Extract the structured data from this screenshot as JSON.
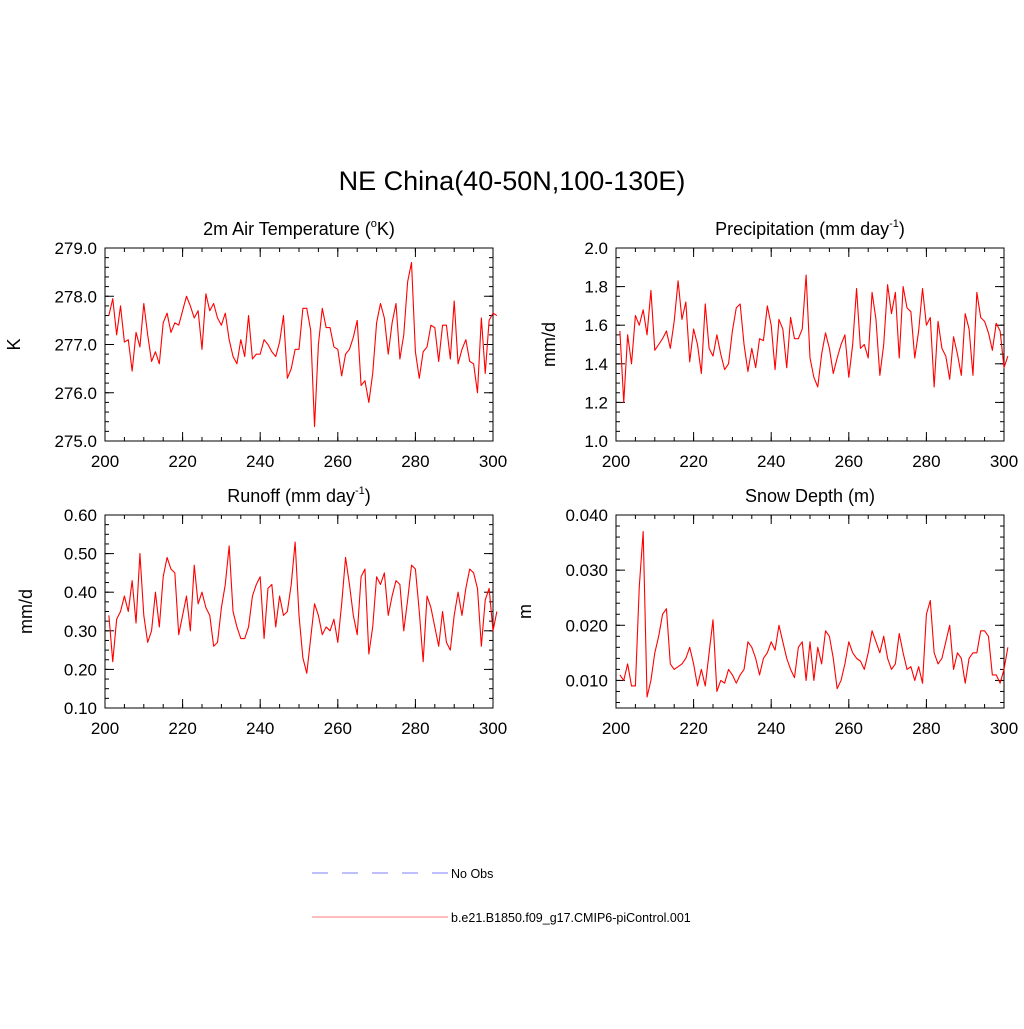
{
  "figure_title": "NE China(40-50N,100-130E)",
  "legend": {
    "entries": [
      {
        "label": "No Obs",
        "color": "#9999ff",
        "style": "dashed"
      },
      {
        "label": "b.e21.B1850.f09_g17.CMIP6-piControl.001",
        "color": "#ff9999",
        "style": "solid"
      }
    ]
  },
  "chart_data": [
    {
      "type": "line",
      "title": "2m Air Temperature (",
      "title_sup": "o",
      "title_tail": "K)",
      "xlabel": "",
      "ylabel": "K",
      "xlim": [
        200,
        300
      ],
      "ylim": [
        275.0,
        279.0
      ],
      "xticks": [
        200,
        220,
        240,
        260,
        280,
        300
      ],
      "xtick_labels": [
        "200",
        "220",
        "240",
        "260",
        "280",
        "300"
      ],
      "yticks": [
        275.0,
        276.0,
        277.0,
        278.0,
        279.0
      ],
      "ytick_labels": [
        "275.0",
        "276.0",
        "277.0",
        "278.0",
        "279.0"
      ],
      "y_minor_step": 0.2,
      "line_color": "#ff0000",
      "series": [
        {
          "name": "b.e21.B1850.f09_g17.CMIP6-piControl.001",
          "x_start": 201,
          "x_step": 1,
          "values": [
            277.6,
            277.95,
            277.2,
            277.8,
            277.05,
            277.1,
            276.45,
            277.25,
            276.95,
            277.85,
            277.2,
            276.65,
            276.85,
            276.6,
            277.45,
            277.65,
            277.25,
            277.45,
            277.4,
            277.7,
            278.0,
            277.8,
            277.55,
            277.7,
            276.9,
            278.05,
            277.7,
            277.85,
            277.55,
            277.4,
            277.65,
            277.1,
            276.75,
            276.6,
            277.1,
            276.75,
            277.6,
            276.7,
            276.8,
            276.8,
            277.1,
            277.0,
            276.85,
            276.75,
            277.05,
            277.6,
            276.3,
            276.5,
            276.9,
            276.9,
            277.75,
            277.75,
            277.3,
            275.3,
            277.0,
            277.75,
            277.35,
            277.35,
            276.95,
            276.9,
            276.35,
            276.8,
            276.9,
            277.15,
            277.5,
            276.15,
            276.25,
            275.8,
            276.4,
            277.45,
            277.85,
            277.55,
            276.8,
            277.45,
            277.85,
            276.7,
            277.2,
            278.3,
            278.7,
            276.85,
            276.3,
            276.85,
            276.95,
            277.4,
            277.35,
            276.65,
            277.4,
            277.4,
            276.7,
            277.9,
            276.6,
            276.9,
            277.1,
            276.65,
            276.6,
            276.0,
            277.55,
            276.4,
            277.5,
            277.65,
            277.6
          ]
        }
      ]
    },
    {
      "type": "line",
      "title": "Precipitation (mm day",
      "title_sup": "-1",
      "title_tail": ")",
      "xlabel": "",
      "ylabel": "mm/d",
      "xlim": [
        200,
        300
      ],
      "ylim": [
        1.0,
        2.0
      ],
      "xticks": [
        200,
        220,
        240,
        260,
        280,
        300
      ],
      "xtick_labels": [
        "200",
        "220",
        "240",
        "260",
        "280",
        "300"
      ],
      "yticks": [
        1.0,
        1.2,
        1.4,
        1.6,
        1.8,
        2.0
      ],
      "ytick_labels": [
        "1.0",
        "1.2",
        "1.4",
        "1.6",
        "1.8",
        "2.0"
      ],
      "y_minor_step": 0.05,
      "line_color": "#ff0000",
      "series": [
        {
          "name": "b.e21.B1850.f09_g17.CMIP6-piControl.001",
          "x_start": 201,
          "x_step": 1,
          "values": [
            1.57,
            1.2,
            1.55,
            1.4,
            1.65,
            1.6,
            1.68,
            1.55,
            1.78,
            1.47,
            1.5,
            1.53,
            1.57,
            1.48,
            1.62,
            1.83,
            1.63,
            1.72,
            1.41,
            1.58,
            1.5,
            1.35,
            1.71,
            1.48,
            1.44,
            1.55,
            1.45,
            1.37,
            1.4,
            1.57,
            1.69,
            1.71,
            1.5,
            1.36,
            1.48,
            1.38,
            1.53,
            1.52,
            1.7,
            1.6,
            1.37,
            1.63,
            1.58,
            1.38,
            1.64,
            1.53,
            1.53,
            1.58,
            1.86,
            1.43,
            1.33,
            1.28,
            1.45,
            1.56,
            1.48,
            1.35,
            1.43,
            1.5,
            1.55,
            1.33,
            1.5,
            1.79,
            1.48,
            1.5,
            1.43,
            1.77,
            1.63,
            1.34,
            1.5,
            1.81,
            1.66,
            1.77,
            1.43,
            1.8,
            1.69,
            1.67,
            1.43,
            1.57,
            1.79,
            1.6,
            1.64,
            1.28,
            1.62,
            1.48,
            1.44,
            1.32,
            1.54,
            1.45,
            1.34,
            1.66,
            1.58,
            1.34,
            1.77,
            1.64,
            1.62,
            1.56,
            1.47,
            1.61,
            1.57,
            1.38,
            1.44
          ]
        }
      ]
    },
    {
      "type": "line",
      "title": "Runoff (mm day",
      "title_sup": "-1",
      "title_tail": ")",
      "xlabel": "",
      "ylabel": "mm/d",
      "xlim": [
        200,
        300
      ],
      "ylim": [
        0.1,
        0.6
      ],
      "xticks": [
        200,
        220,
        240,
        260,
        280,
        300
      ],
      "xtick_labels": [
        "200",
        "220",
        "240",
        "260",
        "280",
        "300"
      ],
      "yticks": [
        0.1,
        0.2,
        0.3,
        0.4,
        0.5,
        0.6
      ],
      "ytick_labels": [
        "0.10",
        "0.20",
        "0.30",
        "0.40",
        "0.50",
        "0.60"
      ],
      "y_minor_step": 0.025,
      "line_color": "#ff0000",
      "series": [
        {
          "name": "b.e21.B1850.f09_g17.CMIP6-piControl.001",
          "x_start": 201,
          "x_step": 1,
          "values": [
            0.34,
            0.22,
            0.33,
            0.35,
            0.39,
            0.35,
            0.43,
            0.32,
            0.5,
            0.34,
            0.27,
            0.3,
            0.4,
            0.31,
            0.44,
            0.49,
            0.46,
            0.45,
            0.29,
            0.34,
            0.39,
            0.3,
            0.47,
            0.37,
            0.4,
            0.36,
            0.34,
            0.26,
            0.27,
            0.36,
            0.42,
            0.52,
            0.35,
            0.31,
            0.28,
            0.28,
            0.31,
            0.39,
            0.42,
            0.44,
            0.28,
            0.41,
            0.42,
            0.31,
            0.39,
            0.34,
            0.35,
            0.42,
            0.53,
            0.34,
            0.23,
            0.19,
            0.28,
            0.37,
            0.34,
            0.29,
            0.31,
            0.3,
            0.33,
            0.27,
            0.37,
            0.49,
            0.42,
            0.34,
            0.29,
            0.44,
            0.46,
            0.24,
            0.31,
            0.44,
            0.42,
            0.45,
            0.34,
            0.39,
            0.43,
            0.42,
            0.3,
            0.38,
            0.47,
            0.46,
            0.35,
            0.22,
            0.39,
            0.36,
            0.31,
            0.26,
            0.35,
            0.27,
            0.25,
            0.34,
            0.4,
            0.34,
            0.41,
            0.46,
            0.45,
            0.41,
            0.26,
            0.38,
            0.41,
            0.3,
            0.35
          ]
        }
      ]
    },
    {
      "type": "line",
      "title": "Snow Depth (m)",
      "title_sup": "",
      "title_tail": "",
      "xlabel": "",
      "ylabel": "m",
      "xlim": [
        200,
        300
      ],
      "ylim": [
        0.005,
        0.04
      ],
      "xticks": [
        200,
        220,
        240,
        260,
        280,
        300
      ],
      "xtick_labels": [
        "200",
        "220",
        "240",
        "260",
        "280",
        "300"
      ],
      "yticks": [
        0.01,
        0.02,
        0.03,
        0.04
      ],
      "ytick_labels": [
        "0.010",
        "0.020",
        "0.030",
        "0.040"
      ],
      "y_minor_step": 0.002,
      "line_color": "#ff0000",
      "series": [
        {
          "name": "b.e21.B1850.f09_g17.CMIP6-piControl.001",
          "x_start": 201,
          "x_step": 1,
          "values": [
            0.011,
            0.01,
            0.013,
            0.009,
            0.009,
            0.027,
            0.037,
            0.007,
            0.01,
            0.015,
            0.018,
            0.022,
            0.023,
            0.013,
            0.012,
            0.0125,
            0.013,
            0.014,
            0.016,
            0.013,
            0.009,
            0.012,
            0.009,
            0.015,
            0.021,
            0.008,
            0.01,
            0.0095,
            0.012,
            0.011,
            0.0095,
            0.011,
            0.012,
            0.017,
            0.016,
            0.014,
            0.011,
            0.014,
            0.015,
            0.017,
            0.0155,
            0.02,
            0.017,
            0.014,
            0.012,
            0.0105,
            0.016,
            0.017,
            0.01,
            0.017,
            0.01,
            0.016,
            0.013,
            0.019,
            0.018,
            0.014,
            0.0085,
            0.01,
            0.013,
            0.017,
            0.015,
            0.014,
            0.0135,
            0.012,
            0.015,
            0.019,
            0.017,
            0.015,
            0.018,
            0.014,
            0.012,
            0.013,
            0.0185,
            0.015,
            0.012,
            0.0125,
            0.01,
            0.0125,
            0.0095,
            0.022,
            0.0245,
            0.015,
            0.013,
            0.014,
            0.017,
            0.02,
            0.012,
            0.015,
            0.014,
            0.0095,
            0.014,
            0.015,
            0.015,
            0.019,
            0.019,
            0.018,
            0.011,
            0.011,
            0.0095,
            0.012,
            0.016
          ]
        }
      ]
    }
  ]
}
